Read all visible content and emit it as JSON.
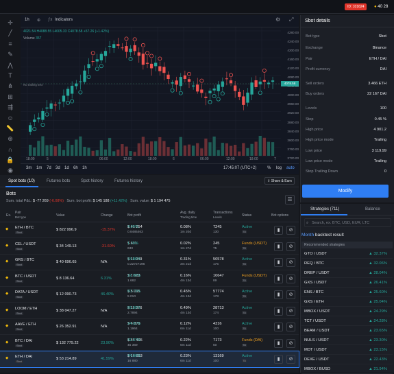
{
  "topbar": {
    "id_label": "ID: 101624",
    "coins": "40 28"
  },
  "toolbar": {
    "interval": "1h",
    "indicators": "Indicators"
  },
  "ohlc": {
    "values": "4021.54  H4088.55  L4005.33  C4078.58  +57.26 (+1.42%)",
    "volume_label": "Volume",
    "volume": "357"
  },
  "chart": {
    "price_axis": [
      "4280.00",
      "4240.00",
      "4200.00",
      "4160.00",
      "4120.00",
      "4080.00",
      "4040.00",
      "4000.00",
      "3960.00",
      "3920.00",
      "3880.00",
      "3840.00",
      "3800.00",
      "3760.00",
      "3720.00"
    ],
    "last_price": "4078.58",
    "trailing_label": "No trailing text",
    "time_axis": [
      "18:00",
      "5",
      "06:00",
      "12:00",
      "18:00",
      "6",
      "06:00",
      "12:00",
      "18:00",
      "7"
    ]
  },
  "chart_bottom": {
    "ranges": [
      "3m",
      "1m",
      "7d",
      "3d",
      "1d",
      "6h",
      "1h"
    ],
    "clock": "17:45:07 (UTC+2)",
    "pct": "%",
    "log": "log",
    "auto": "auto"
  },
  "sbot": {
    "title": "Sbot details",
    "rows": [
      {
        "k": "Bot type",
        "v": "Sbot"
      },
      {
        "k": "Exchange",
        "v": "Binance"
      },
      {
        "k": "Pair",
        "v": "ETH / DAI"
      },
      {
        "k": "Profit currency",
        "v": "DAI"
      },
      {
        "k": "Sell orders",
        "v": "3.466 ETH"
      },
      {
        "k": "Buy orders",
        "v": "22 167 DAI"
      },
      {
        "k": "Levels",
        "v": "100"
      },
      {
        "k": "Step",
        "v": "0.45 %"
      },
      {
        "k": "High price",
        "v": "4 901.2"
      },
      {
        "k": "High price mode",
        "v": "Trailing"
      },
      {
        "k": "Low price",
        "v": "3 119.99"
      },
      {
        "k": "Low price mode",
        "v": "Trailing"
      },
      {
        "k": "Stop Trailing Down",
        "v": "0"
      }
    ],
    "modify": "Modify"
  },
  "strategies": {
    "tab1": "Strategies (711)",
    "tab2": "Balance",
    "search": "Search, ex. BTC, USD, EUR, LTC",
    "month_a": "Month",
    "month_b": " backtest result",
    "recommended": "Recommended strategies",
    "items": [
      {
        "n": "GTO / USDT",
        "p": "32.37%"
      },
      {
        "n": "REQ / BTC",
        "p": "32.06%"
      },
      {
        "n": "DREP / USDT",
        "p": "28.04%"
      },
      {
        "n": "GXS / USDT",
        "p": "26.41%"
      },
      {
        "n": "ENS / BTC",
        "p": "25.60%"
      },
      {
        "n": "GXS / ETH",
        "p": "25.04%"
      },
      {
        "n": "MBOX / USDT",
        "p": "24.29%"
      },
      {
        "n": "TCT / USDT",
        "p": "24.28%"
      },
      {
        "n": "BEAM / USDT",
        "p": "23.65%"
      },
      {
        "n": "NULS / USDT",
        "p": "23.30%"
      },
      {
        "n": "MDT / USDT",
        "p": "23.15%"
      },
      {
        "n": "DEXE / USDT",
        "p": "22.43%"
      },
      {
        "n": "MBOX / BUSD",
        "p": "21.94%"
      }
    ]
  },
  "tabs": {
    "spot": "Spot bots (10)",
    "futures": "Futures bots",
    "history": "Spot history",
    "fhistory": "Futures history",
    "share": "Share & Earn"
  },
  "bots": {
    "title": "Bots",
    "pnl_label": "Sum. total P&L: ",
    "pnl": "$ -77 269",
    "pnl_pct": "(-6.08%)",
    "profit_label": "Sum. bot profit: ",
    "profit": "$ 145 188",
    "profit_pct": "(+11.42%)",
    "value_label": "Sum. value: ",
    "value": "$ 1 194 475"
  },
  "headers": {
    "ex": "Ex.",
    "pair": "Pair",
    "pair_sub": "Bot type",
    "value": "Value",
    "change": "Change",
    "profit": "Bot profit",
    "daily": "Avg. daily",
    "daily_sub": "Trading time",
    "tx": "Transactions",
    "tx_sub": "Levels",
    "status": "Status",
    "options": "Bot options"
  },
  "rows": [
    {
      "pair": "ETH / BTC",
      "value": "$ 822 996.9",
      "change": "-15.37%",
      "profit": "$ 41 254",
      "ppct": "4.24%",
      "sub": "0.8485463",
      "daily": "0.08%",
      "time": "1m 20d",
      "tx": "7245",
      "lv": "130",
      "status": "Active"
    },
    {
      "pair": "CEL / USDT",
      "value": "$ 34 149.13",
      "change": "-31.60%",
      "profit": "$ 631",
      "ppct": "1.26%",
      "sub": "630",
      "daily": "0.02%",
      "time": "1m 27d",
      "tx": "245",
      "lv": "75",
      "status": "Funds (USDT)"
    },
    {
      "pair": "GRS / BTC",
      "value": "$ 40 696.65",
      "change": "N/A",
      "profit": "$ 11 049",
      "ppct": "34.86%",
      "sub": "0.22727196",
      "daily": "0.31%",
      "time": "3m 21d",
      "tx": "50578",
      "lv": "175",
      "status": "Active"
    },
    {
      "pair": "BTC / USDT",
      "value": "$ 8 136.64",
      "change": "6.31%",
      "profit": "$ 1 683",
      "ppct": "22.00%",
      "sub": "1 682",
      "daily": "0.16%",
      "time": "4m 13d",
      "tx": "10647",
      "lv": "89",
      "status": "Funds (USDT)"
    },
    {
      "pair": "DATA / USDT",
      "value": "$ 12 090.73",
      "change": "46.40%",
      "profit": "$ 5 015",
      "ppct": "60.73%",
      "sub": "5 010",
      "daily": "0.45%",
      "time": "4m 13d",
      "tx": "57774",
      "lv": "178",
      "status": "Active"
    },
    {
      "pair": "LOOM / ETH",
      "value": "$ 38 047.27",
      "change": "N/A",
      "profit": "$ 11 376",
      "ppct": "66.00%",
      "sub": "2.7894",
      "daily": "0.49%",
      "time": "4m 13d",
      "tx": "28713",
      "lv": "174",
      "status": "Active"
    },
    {
      "pair": "AAVE / ETH",
      "value": "$ 26 352.91",
      "change": "N/A",
      "profit": "$ 4 879",
      "ppct": "24.01%",
      "sub": "1.1964",
      "daily": "0.12%",
      "time": "6m 11d",
      "tx": "4316",
      "lv": "100",
      "status": "Active"
    },
    {
      "pair": "BTC / DAI",
      "value": "$ 132 779.22",
      "change": "23.90%",
      "profit": "$ 45 405",
      "ppct": "42.37%",
      "sub": "45 369",
      "daily": "0.22%",
      "time": "6m 11d",
      "tx": "7173",
      "lv": "50",
      "status": "Funds (DAI)"
    },
    {
      "pair": "ETH / DAI",
      "value": "$ 53 214.89",
      "change": "41.59%",
      "profit": "$ 16 893",
      "ppct": "44.96%",
      "sub": "16 880",
      "daily": "0.23%",
      "time": "6m 11d",
      "tx": "13169",
      "lv": "100",
      "status": "Active"
    }
  ],
  "colors": {
    "up": "#26a69a",
    "down": "#ef5350",
    "accent": "#2f7ef3"
  }
}
